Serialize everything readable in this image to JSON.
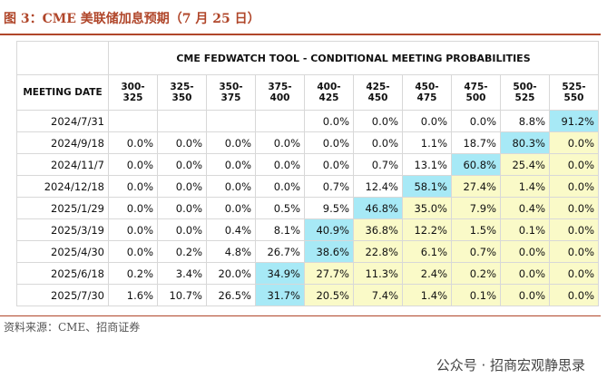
{
  "header": {
    "title": "图 3：CME 美联储加息预期（7 月 25 日）"
  },
  "table": {
    "caption": "CME FEDWATCH TOOL - CONDITIONAL MEETING PROBABILITIES",
    "columns": [
      "MEETING DATE",
      "300-325",
      "325-350",
      "350-375",
      "375-400",
      "400-425",
      "425-450",
      "450-475",
      "475-500",
      "500-525",
      "525-550"
    ],
    "rows": [
      [
        "2024/7/31",
        null,
        null,
        null,
        null,
        "0.0%",
        "0.0%",
        "0.0%",
        "0.0%",
        "8.8%",
        "91.2%"
      ],
      [
        "2024/9/18",
        "0.0%",
        "0.0%",
        "0.0%",
        "0.0%",
        "0.0%",
        "0.0%",
        "1.1%",
        "18.7%",
        "80.3%",
        "0.0%"
      ],
      [
        "2024/11/7",
        "0.0%",
        "0.0%",
        "0.0%",
        "0.0%",
        "0.0%",
        "0.7%",
        "13.1%",
        "60.8%",
        "25.4%",
        "0.0%"
      ],
      [
        "2024/12/18",
        "0.0%",
        "0.0%",
        "0.0%",
        "0.0%",
        "0.7%",
        "12.4%",
        "58.1%",
        "27.4%",
        "1.4%",
        "0.0%"
      ],
      [
        "2025/1/29",
        "0.0%",
        "0.0%",
        "0.0%",
        "0.5%",
        "9.5%",
        "46.8%",
        "35.0%",
        "7.9%",
        "0.4%",
        "0.0%"
      ],
      [
        "2025/3/19",
        "0.0%",
        "0.0%",
        "0.4%",
        "8.1%",
        "40.9%",
        "36.8%",
        "12.2%",
        "1.5%",
        "0.1%",
        "0.0%"
      ],
      [
        "2025/4/30",
        "0.0%",
        "0.2%",
        "4.8%",
        "26.7%",
        "38.6%",
        "22.8%",
        "6.1%",
        "0.7%",
        "0.0%",
        "0.0%"
      ],
      [
        "2025/6/18",
        "0.2%",
        "3.4%",
        "20.0%",
        "34.9%",
        "27.7%",
        "11.3%",
        "2.4%",
        "0.2%",
        "0.0%",
        "0.0%"
      ],
      [
        "2025/7/30",
        "1.6%",
        "10.7%",
        "26.5%",
        "31.7%",
        "20.5%",
        "7.4%",
        "1.4%",
        "0.1%",
        "0.0%",
        "0.0%"
      ]
    ]
  },
  "footer": {
    "source": "资料来源：CME、招商证券",
    "watermark": "公众号 · 招商宏观静思录"
  }
}
